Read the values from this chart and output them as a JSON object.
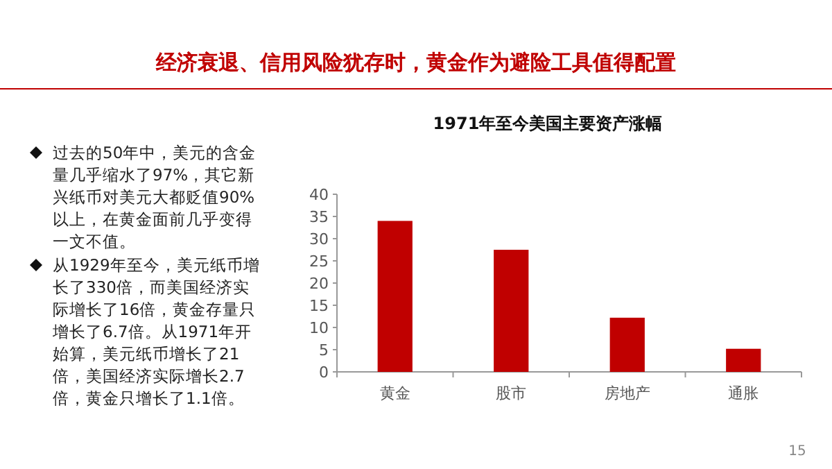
{
  "chart_data": {
    "type": "bar",
    "title": "经济衰退、信用风险犹存时，黄金作为避险工具值得配置",
    "subtitle": "1971年至今美国主要资产涨幅",
    "categories": [
      "黄金",
      "股市",
      "房地产",
      "通胀"
    ],
    "values": [
      34.0,
      27.5,
      12.2,
      5.2
    ],
    "color": "#c00000",
    "ylim": [
      0,
      40
    ],
    "yticks": [
      0,
      5,
      10,
      15,
      20,
      25,
      30,
      35,
      40
    ],
    "grid": false,
    "annotations": [
      "过去的50年中，美元的含金量几乎缩水了97%，其它新兴纸币对美元大都贬值90%以上，在黄金面前几乎变得一文不值。",
      "从1929年至今，美元纸币增长了330倍，而美国经济实际增长了16倍，黄金存量只增长了6.7倍。从1971年开始算，美元纸币增长了21倍，美国经济实际增长2.7倍，黄金只增长了1.1倍。",
      "15"
    ]
  }
}
